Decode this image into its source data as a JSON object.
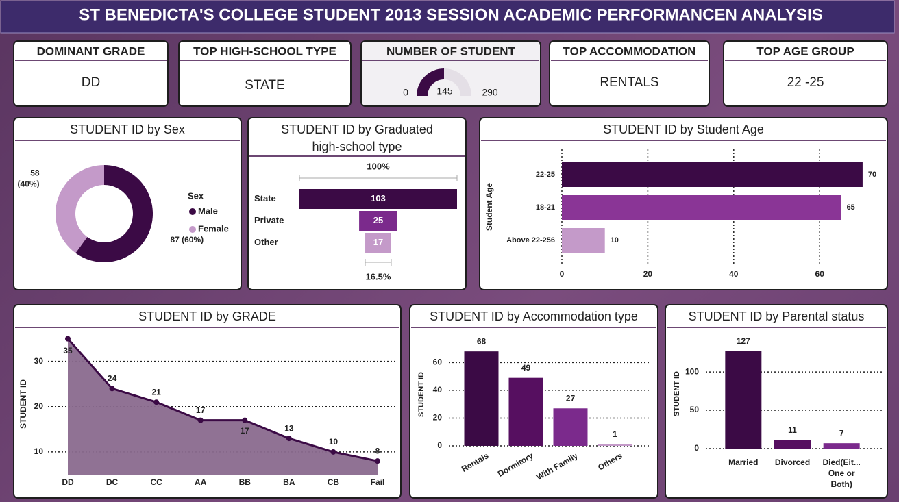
{
  "header": {
    "title": "ST BENEDICTA'S COLLEGE STUDENT 2013 SESSION ACADEMIC PERFORMANCEN ANALYSIS"
  },
  "cards": [
    {
      "title": "DOMINANT GRADE",
      "value": "DD"
    },
    {
      "title": "TOP HIGH-SCHOOL TYPE",
      "value": "STATE"
    },
    {
      "title": "NUMBER OF STUDENT",
      "gauge": {
        "value": 145,
        "min": 0,
        "max": 290
      }
    },
    {
      "title": "TOP ACCOMMODATION",
      "value": "RENTALS"
    },
    {
      "title": "TOP AGE GROUP",
      "value": "22 -25"
    }
  ],
  "chart_data": [
    {
      "type": "pie",
      "donut": true,
      "title": "STUDENT ID by Sex",
      "categories": [
        "Male",
        "Female"
      ],
      "values": [
        87,
        58
      ],
      "value_labels": [
        "87 (60%)",
        "58 (40%)"
      ],
      "colors": [
        "#3b0a45",
        "#c49ac9"
      ],
      "legend_title": "Sex",
      "legend": "right"
    },
    {
      "type": "funnel",
      "title": "STUDENT ID by Graduated high-school type",
      "categories": [
        "State",
        "Private",
        "Other"
      ],
      "values": [
        103,
        25,
        17
      ],
      "colors": [
        "#3b0a45",
        "#7b2a8c",
        "#c49ac9"
      ],
      "top_label": "100%",
      "bottom_label": "16.5%"
    },
    {
      "type": "bar",
      "orientation": "horizontal",
      "title": "STUDENT ID by Student Age",
      "categories": [
        "22-25",
        "18-21",
        "Above 22-256"
      ],
      "values": [
        70,
        65,
        10
      ],
      "colors": [
        "#3b0a45",
        "#8a3596",
        "#c49ac9"
      ],
      "ylabel": "Student Age",
      "xlim": [
        0,
        74
      ],
      "xticks": [
        0,
        20,
        40,
        60
      ],
      "grid": true
    },
    {
      "type": "area",
      "title": "STUDENT ID by GRADE",
      "categories": [
        "DD",
        "DC",
        "CC",
        "AA",
        "BB",
        "BA",
        "CB",
        "Fail"
      ],
      "values": [
        35,
        24,
        21,
        17,
        17,
        13,
        10,
        8
      ],
      "color": "#3b0a45",
      "fill": "#8a6a8e",
      "ylabel": "STUDENT ID",
      "ylim": [
        5,
        36
      ],
      "yticks": [
        10,
        20,
        30
      ],
      "grid": true
    },
    {
      "type": "bar",
      "title": "STUDENT ID by Accommodation type",
      "categories": [
        "Rentals",
        "Dormitory",
        "With Family",
        "Others"
      ],
      "values": [
        68,
        49,
        27,
        1
      ],
      "colors": [
        "#3b0a45",
        "#560f60",
        "#7b2a8c",
        "#c49ac9"
      ],
      "ylabel": "STUDENT ID",
      "ylim": [
        0,
        74
      ],
      "yticks": [
        0,
        20,
        40,
        60
      ],
      "grid": true
    },
    {
      "type": "bar",
      "title": "STUDENT ID by Parental status",
      "categories": [
        "Married",
        "Divorced",
        "Died(Eit... One or Both)"
      ],
      "values": [
        127,
        11,
        7
      ],
      "colors": [
        "#3b0a45",
        "#560f60",
        "#7b2a8c"
      ],
      "ylabel": "STUDENT ID",
      "ylim": [
        0,
        143
      ],
      "yticks": [
        0,
        50,
        100
      ],
      "grid": true
    }
  ]
}
